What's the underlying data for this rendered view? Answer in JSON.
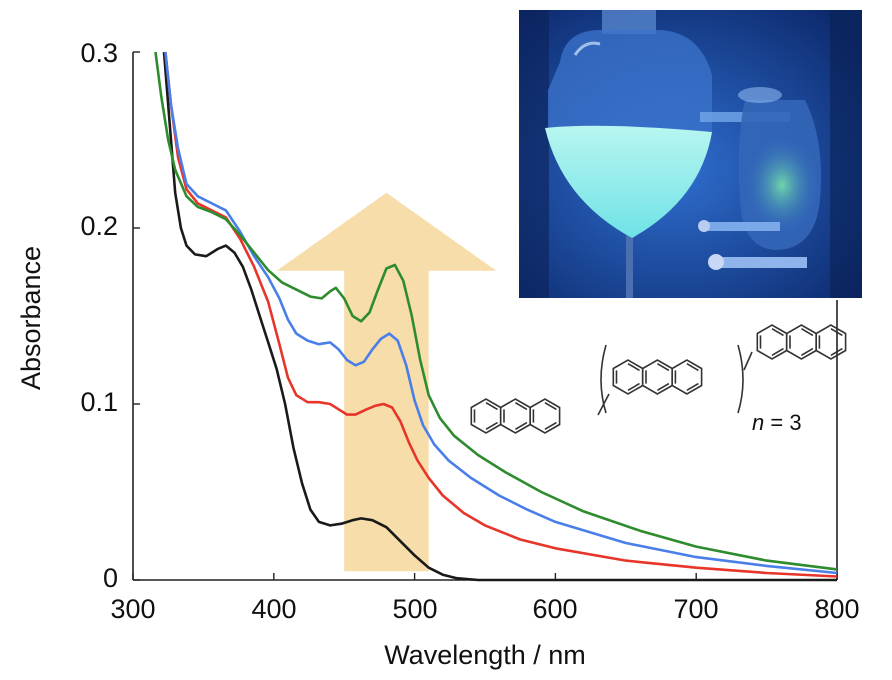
{
  "chart_data": {
    "type": "line",
    "title": "",
    "xlabel": "Wavelength / nm",
    "ylabel": "Absorbance",
    "xlim": [
      300,
      800
    ],
    "ylim": [
      0,
      0.3
    ],
    "x_ticks": [
      "300",
      "400",
      "500",
      "600",
      "700",
      "800"
    ],
    "y_ticks": [
      "0",
      "0.1",
      "0.2",
      "0.3"
    ],
    "grid": false,
    "legend": "none",
    "series": [
      {
        "color": "#1a1a1a",
        "points": [
          [
            322,
            0.3
          ],
          [
            326,
            0.26
          ],
          [
            330,
            0.22
          ],
          [
            334,
            0.2
          ],
          [
            338,
            0.19
          ],
          [
            344,
            0.185
          ],
          [
            352,
            0.184
          ],
          [
            360,
            0.188
          ],
          [
            366,
            0.19
          ],
          [
            372,
            0.186
          ],
          [
            378,
            0.178
          ],
          [
            384,
            0.165
          ],
          [
            390,
            0.15
          ],
          [
            396,
            0.135
          ],
          [
            402,
            0.12
          ],
          [
            408,
            0.1
          ],
          [
            414,
            0.075
          ],
          [
            420,
            0.055
          ],
          [
            426,
            0.04
          ],
          [
            432,
            0.033
          ],
          [
            440,
            0.031
          ],
          [
            448,
            0.032
          ],
          [
            456,
            0.034
          ],
          [
            462,
            0.035
          ],
          [
            470,
            0.034
          ],
          [
            480,
            0.03
          ],
          [
            490,
            0.022
          ],
          [
            500,
            0.014
          ],
          [
            510,
            0.007
          ],
          [
            520,
            0.003
          ],
          [
            530,
            0.001
          ],
          [
            545,
            0.0
          ],
          [
            800,
            0.0
          ]
        ]
      },
      {
        "color": "#e8352a",
        "points": [
          [
            323,
            0.3
          ],
          [
            327,
            0.27
          ],
          [
            332,
            0.24
          ],
          [
            338,
            0.222
          ],
          [
            346,
            0.214
          ],
          [
            356,
            0.21
          ],
          [
            366,
            0.206
          ],
          [
            376,
            0.194
          ],
          [
            386,
            0.178
          ],
          [
            396,
            0.158
          ],
          [
            404,
            0.134
          ],
          [
            410,
            0.115
          ],
          [
            416,
            0.105
          ],
          [
            424,
            0.101
          ],
          [
            432,
            0.101
          ],
          [
            440,
            0.1
          ],
          [
            446,
            0.097
          ],
          [
            452,
            0.094
          ],
          [
            458,
            0.094
          ],
          [
            466,
            0.097
          ],
          [
            472,
            0.099
          ],
          [
            478,
            0.1
          ],
          [
            484,
            0.098
          ],
          [
            490,
            0.09
          ],
          [
            496,
            0.078
          ],
          [
            502,
            0.068
          ],
          [
            510,
            0.058
          ],
          [
            520,
            0.048
          ],
          [
            535,
            0.038
          ],
          [
            550,
            0.031
          ],
          [
            575,
            0.023
          ],
          [
            600,
            0.018
          ],
          [
            650,
            0.011
          ],
          [
            700,
            0.007
          ],
          [
            750,
            0.004
          ],
          [
            800,
            0.002
          ]
        ]
      },
      {
        "color": "#4a7ee8",
        "points": [
          [
            323,
            0.3
          ],
          [
            327,
            0.27
          ],
          [
            332,
            0.245
          ],
          [
            338,
            0.225
          ],
          [
            346,
            0.218
          ],
          [
            356,
            0.214
          ],
          [
            366,
            0.21
          ],
          [
            376,
            0.198
          ],
          [
            386,
            0.184
          ],
          [
            396,
            0.172
          ],
          [
            404,
            0.16
          ],
          [
            410,
            0.148
          ],
          [
            416,
            0.14
          ],
          [
            424,
            0.136
          ],
          [
            432,
            0.134
          ],
          [
            440,
            0.135
          ],
          [
            446,
            0.131
          ],
          [
            452,
            0.125
          ],
          [
            458,
            0.122
          ],
          [
            464,
            0.124
          ],
          [
            470,
            0.131
          ],
          [
            476,
            0.137
          ],
          [
            482,
            0.14
          ],
          [
            488,
            0.136
          ],
          [
            494,
            0.122
          ],
          [
            500,
            0.102
          ],
          [
            506,
            0.088
          ],
          [
            514,
            0.077
          ],
          [
            524,
            0.068
          ],
          [
            540,
            0.058
          ],
          [
            560,
            0.048
          ],
          [
            580,
            0.04
          ],
          [
            600,
            0.033
          ],
          [
            650,
            0.021
          ],
          [
            700,
            0.013
          ],
          [
            750,
            0.008
          ],
          [
            800,
            0.004
          ]
        ]
      },
      {
        "color": "#2e8b2e",
        "points": [
          [
            316,
            0.3
          ],
          [
            320,
            0.275
          ],
          [
            325,
            0.25
          ],
          [
            330,
            0.233
          ],
          [
            338,
            0.218
          ],
          [
            346,
            0.212
          ],
          [
            356,
            0.209
          ],
          [
            366,
            0.205
          ],
          [
            376,
            0.196
          ],
          [
            386,
            0.186
          ],
          [
            396,
            0.176
          ],
          [
            406,
            0.169
          ],
          [
            416,
            0.165
          ],
          [
            426,
            0.161
          ],
          [
            434,
            0.16
          ],
          [
            440,
            0.164
          ],
          [
            444,
            0.166
          ],
          [
            450,
            0.16
          ],
          [
            456,
            0.15
          ],
          [
            462,
            0.147
          ],
          [
            468,
            0.152
          ],
          [
            474,
            0.165
          ],
          [
            480,
            0.177
          ],
          [
            486,
            0.179
          ],
          [
            492,
            0.17
          ],
          [
            498,
            0.15
          ],
          [
            504,
            0.125
          ],
          [
            510,
            0.105
          ],
          [
            518,
            0.092
          ],
          [
            528,
            0.082
          ],
          [
            545,
            0.071
          ],
          [
            565,
            0.061
          ],
          [
            590,
            0.05
          ],
          [
            620,
            0.039
          ],
          [
            660,
            0.028
          ],
          [
            700,
            0.019
          ],
          [
            750,
            0.011
          ],
          [
            800,
            0.006
          ]
        ]
      }
    ],
    "annotations": {
      "arrow": {
        "x_center": 480,
        "x_half_width": 30,
        "y_from": 0.005,
        "y_to": 0.22,
        "color": "#f5d9a0"
      },
      "repeat_label_prefix": "n",
      "repeat_label_suffix": " = 3"
    }
  }
}
